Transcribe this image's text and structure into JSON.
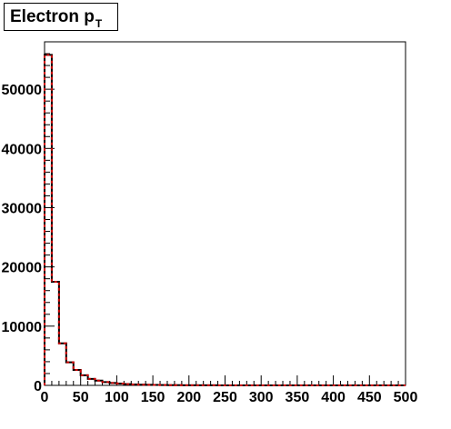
{
  "title": {
    "main": "Electron p",
    "subscript": "T"
  },
  "chart_data": {
    "type": "histogram",
    "title": "Electron pT",
    "xlabel": "",
    "ylabel": "",
    "xlim": [
      0,
      500
    ],
    "ylim": [
      0,
      58000
    ],
    "bin_width": 10,
    "bin_low_edges": [
      0,
      10,
      20,
      30,
      40,
      50,
      60,
      70,
      80,
      90,
      100,
      110,
      120,
      130,
      140,
      150,
      160,
      170,
      180,
      190,
      200,
      210,
      220,
      230,
      240,
      250,
      260,
      270,
      280,
      290,
      300,
      310,
      320,
      330,
      340,
      350,
      360,
      370,
      380,
      390,
      400,
      410,
      420,
      430,
      440,
      450,
      460,
      470,
      480,
      490
    ],
    "series": [
      {
        "name": "",
        "color": "#000000",
        "style": "solid",
        "values": [
          55800,
          17500,
          7100,
          3900,
          2600,
          1700,
          1100,
          800,
          550,
          400,
          300,
          220,
          160,
          120,
          90,
          70,
          55,
          45,
          35,
          28,
          22,
          18,
          14,
          11,
          9,
          8,
          6,
          5,
          4,
          4,
          3,
          3,
          2,
          2,
          2,
          1,
          1,
          1,
          1,
          1,
          1,
          1,
          1,
          0,
          0,
          0,
          0,
          0,
          0,
          0
        ]
      },
      {
        "name": "",
        "color": "#cc0000",
        "style": "dashed",
        "values": [
          55800,
          17500,
          7100,
          3900,
          2600,
          1700,
          1100,
          800,
          550,
          400,
          300,
          220,
          160,
          120,
          90,
          70,
          55,
          45,
          35,
          28,
          22,
          18,
          14,
          11,
          9,
          8,
          6,
          5,
          4,
          4,
          3,
          3,
          2,
          2,
          2,
          1,
          1,
          1,
          1,
          1,
          1,
          1,
          1,
          0,
          0,
          0,
          0,
          0,
          0,
          0
        ]
      }
    ],
    "x_major_ticks": [
      0,
      50,
      100,
      150,
      200,
      250,
      300,
      350,
      400,
      450,
      500
    ],
    "x_major_tick_labels": [
      "0",
      "50",
      "100",
      "150",
      "200",
      "250",
      "300",
      "350",
      "400",
      "450",
      "500"
    ],
    "y_major_ticks": [
      0,
      10000,
      20000,
      30000,
      40000,
      50000
    ],
    "y_major_tick_labels": [
      "0",
      "10000",
      "20000",
      "30000",
      "40000",
      "50000"
    ],
    "grid": false,
    "legend": "none"
  }
}
